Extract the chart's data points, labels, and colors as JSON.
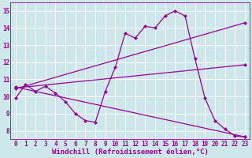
{
  "bg_color": "#cce8eb",
  "line_color": "#990099",
  "grid_color": "#ffffff",
  "xlabel": "Windchill (Refroidissement éolien,°C)",
  "ylim": [
    7.5,
    15.5
  ],
  "xlim": [
    -0.5,
    23.5
  ],
  "yticks": [
    8,
    9,
    10,
    11,
    12,
    13,
    14,
    15
  ],
  "xticks": [
    0,
    1,
    2,
    3,
    4,
    5,
    6,
    7,
    8,
    9,
    10,
    11,
    12,
    13,
    14,
    15,
    16,
    17,
    18,
    19,
    20,
    21,
    22,
    23
  ],
  "line1_x": [
    0,
    1,
    2,
    3,
    4,
    5,
    6,
    7,
    8,
    9,
    10,
    11,
    12,
    13,
    14,
    15,
    16,
    17,
    18,
    19,
    20,
    21,
    22,
    23
  ],
  "line1_y": [
    9.9,
    10.7,
    10.3,
    10.6,
    10.2,
    9.7,
    9.0,
    8.6,
    8.5,
    10.3,
    11.7,
    13.7,
    13.4,
    14.1,
    14.0,
    14.7,
    15.0,
    14.7,
    12.2,
    9.9,
    8.6,
    8.1,
    7.7,
    7.65
  ],
  "line2_x": [
    0,
    23
  ],
  "line2_y": [
    10.55,
    7.65
  ],
  "line3_x": [
    0,
    23
  ],
  "line3_y": [
    10.45,
    14.3
  ],
  "line4_x": [
    0,
    23
  ],
  "line4_y": [
    10.5,
    11.85
  ],
  "markersize": 2.5,
  "linewidth": 0.9,
  "tick_fontsize": 5.5,
  "xlabel_fontsize": 6.5
}
